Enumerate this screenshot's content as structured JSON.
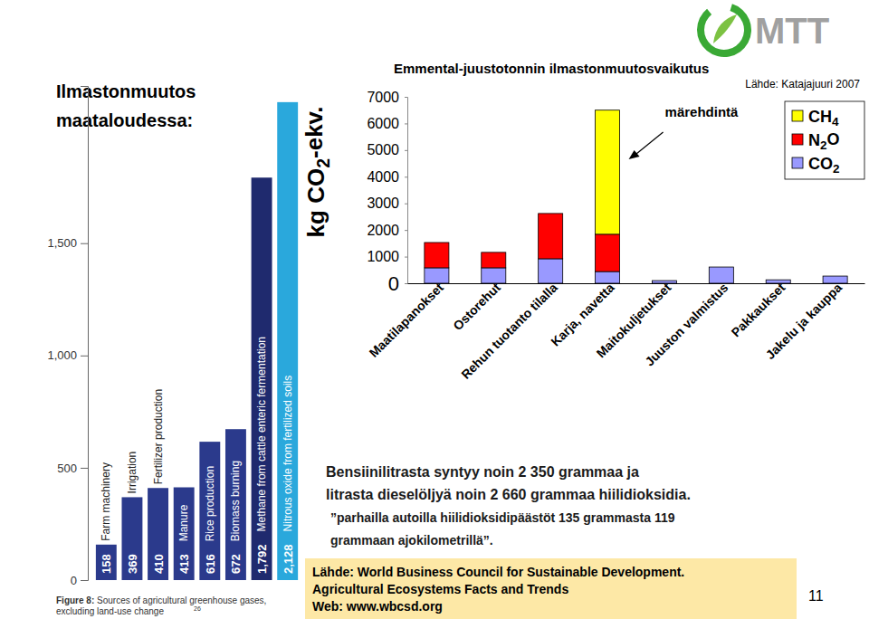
{
  "chart_data": [
    {
      "type": "bar",
      "title": "Figure 8: Sources of agricultural greenhouse gases, excluding land-use change",
      "footnote": "26",
      "categories": [
        "Farm machinery",
        "Irrigation",
        "Fertilizer production",
        "Manure",
        "Rice production",
        "Biomass burning",
        "Methane from cattle enteric fermentation",
        "Nitrous oxide from fertilized soils"
      ],
      "values": [
        158,
        369,
        410,
        413,
        616,
        672,
        1792,
        2128
      ],
      "value_labels": [
        "158",
        "369",
        "410",
        "413",
        "616",
        "672",
        "1,792",
        "2,128"
      ],
      "colors": [
        "#2b3a8c",
        "#2b3a8c",
        "#2b3a8c",
        "#2b3a8c",
        "#2b3a8c",
        "#2b3a8c",
        "#1f2a6e",
        "#2aa8dc"
      ],
      "ylim": [
        0,
        2200
      ],
      "yticks": [
        0,
        500,
        {
          "value": 1000,
          "label": "1,000"
        },
        {
          "value": 1500,
          "label": "1,500"
        }
      ],
      "data_labels": true,
      "grid": false
    },
    {
      "type": "bar",
      "title": "Emmental-juustotonnin ilmastonmuutosvaikutus",
      "subtitle": "Lähde: Katajajuuri 2007",
      "y_label": "kg CO2-ekv.",
      "stacked": true,
      "categories": [
        "Maatilapanokset",
        "Ostorehut",
        "Rehun tuotanto tilalla",
        "Karja, navetta",
        "Maitokuljetukset",
        "Juuston valmistus",
        "Pakkaukset",
        "Jakelu ja kauppa"
      ],
      "series": [
        {
          "name": "CO2",
          "color": "#9999ff",
          "values": [
            580,
            580,
            920,
            440,
            100,
            610,
            130,
            270
          ]
        },
        {
          "name": "N2O",
          "color": "#ff0000",
          "values": [
            950,
            580,
            1700,
            1400,
            0,
            0,
            0,
            0
          ]
        },
        {
          "name": "CH4",
          "color": "#ffff00",
          "values": [
            0,
            0,
            0,
            4660,
            0,
            0,
            0,
            0
          ]
        }
      ],
      "annotations": [
        {
          "text": "märehdintä",
          "category": "Karja, navetta"
        }
      ],
      "ylim": [
        0,
        7000
      ],
      "yticks": [
        0,
        1000,
        2000,
        3000,
        4000,
        5000,
        6000,
        7000
      ],
      "legend": "top-right",
      "grid": false
    }
  ],
  "slide": {
    "heading": [
      "Ilmastonmuutos",
      "maataloudessa:"
    ],
    "paragraph": [
      "Bensiinilitrasta syntyy noin 2 350 grammaa ja",
      "litrasta dieselöljyä noin 2 660 grammaa hiilidioksidia.",
      "”parhailla autoilla hiilidioksidipäästöt 135 grammasta 119",
      "grammaan ajokilometrillä”."
    ],
    "source_box": [
      "Lähde: World Business Council for Sustainable Development.",
      "Agricultural Ecosystems Facts and Trends",
      "Web: www.wbcsd.org"
    ],
    "page_number": "11",
    "logo": "MTT"
  }
}
